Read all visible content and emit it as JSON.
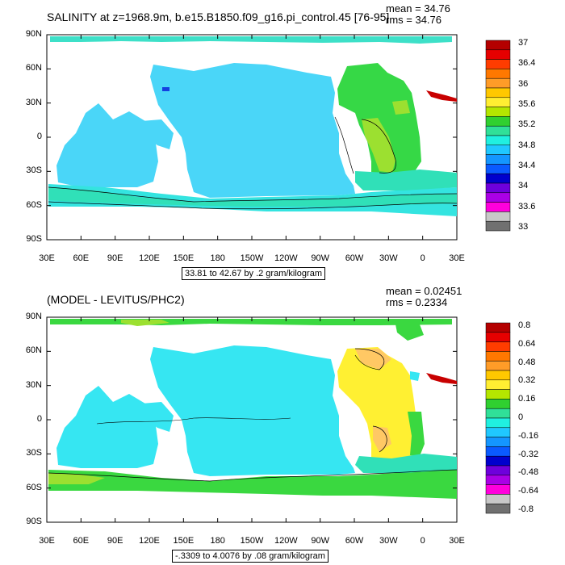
{
  "chart_data": [
    {
      "type": "heatmap",
      "title": "SALINITY at z=1968.9m, b.e15.B1850.f09_g16.pi_control.45 [76-95]",
      "stats": {
        "mean": "mean = 34.76",
        "rms": "rms = 34.76"
      },
      "x_ticks": [
        "30E",
        "60E",
        "90E",
        "120E",
        "150E",
        "180",
        "150W",
        "120W",
        "90W",
        "60W",
        "30W",
        "0",
        "30E"
      ],
      "y_ticks": [
        "90N",
        "60N",
        "30N",
        "0",
        "30S",
        "60S",
        "90S"
      ],
      "xlim": [
        30,
        390
      ],
      "ylim": [
        -90,
        90
      ],
      "contour_info": "33.81 to 42.67 by .2 gram/kilogram",
      "colorbar": {
        "labels": [
          "37",
          "36.4",
          "36",
          "35.6",
          "35.2",
          "34.8",
          "34.4",
          "34",
          "33.6",
          "33"
        ],
        "colors": [
          "#b40000",
          "#e60000",
          "#ff3c00",
          "#ff7800",
          "#ff9c28",
          "#ffc800",
          "#ffee32",
          "#b4e600",
          "#30d030",
          "#30e098",
          "#20f0e0",
          "#20c8ff",
          "#1496ff",
          "#0a5aff",
          "#0000cd",
          "#6e00dc",
          "#aa00e6",
          "#ff00dc",
          "#c8c8c8",
          "#707070"
        ]
      }
    },
    {
      "type": "heatmap",
      "title": "(MODEL - LEVITUS/PHC2)",
      "stats": {
        "mean": "mean = 0.02451",
        "rms": "rms = 0.2334"
      },
      "x_ticks": [
        "30E",
        "60E",
        "90E",
        "120E",
        "150E",
        "180",
        "150W",
        "120W",
        "90W",
        "60W",
        "30W",
        "0",
        "30E"
      ],
      "y_ticks": [
        "90N",
        "60N",
        "30N",
        "0",
        "30S",
        "60S",
        "90S"
      ],
      "xlim": [
        30,
        390
      ],
      "ylim": [
        -90,
        90
      ],
      "contour_info": "-.3309 to 4.0076 by .08 gram/kilogram",
      "colorbar": {
        "labels": [
          "0.8",
          "0.64",
          "0.48",
          "0.32",
          "0.16",
          "0",
          "-0.16",
          "-0.32",
          "-0.48",
          "-0.64",
          "-0.8"
        ],
        "colors": [
          "#b40000",
          "#e60000",
          "#ff3c00",
          "#ff7800",
          "#ff9c28",
          "#ffc800",
          "#ffee32",
          "#b4e600",
          "#30d030",
          "#30e098",
          "#20f0e0",
          "#20c8ff",
          "#1496ff",
          "#0a5aff",
          "#0000cd",
          "#6e00dc",
          "#aa00e6",
          "#ff00dc",
          "#c8c8c8",
          "#707070"
        ]
      }
    }
  ],
  "colors": {
    "cyan_field": "#36e6f2",
    "light_blue": "#3ed8f6",
    "teal": "#30e0b8",
    "green": "#3ad840",
    "lime": "#9ce030",
    "yellow": "#fff032",
    "orange_light": "#ffc864",
    "red": "#c80000",
    "deep_blue": "#1440e0"
  }
}
